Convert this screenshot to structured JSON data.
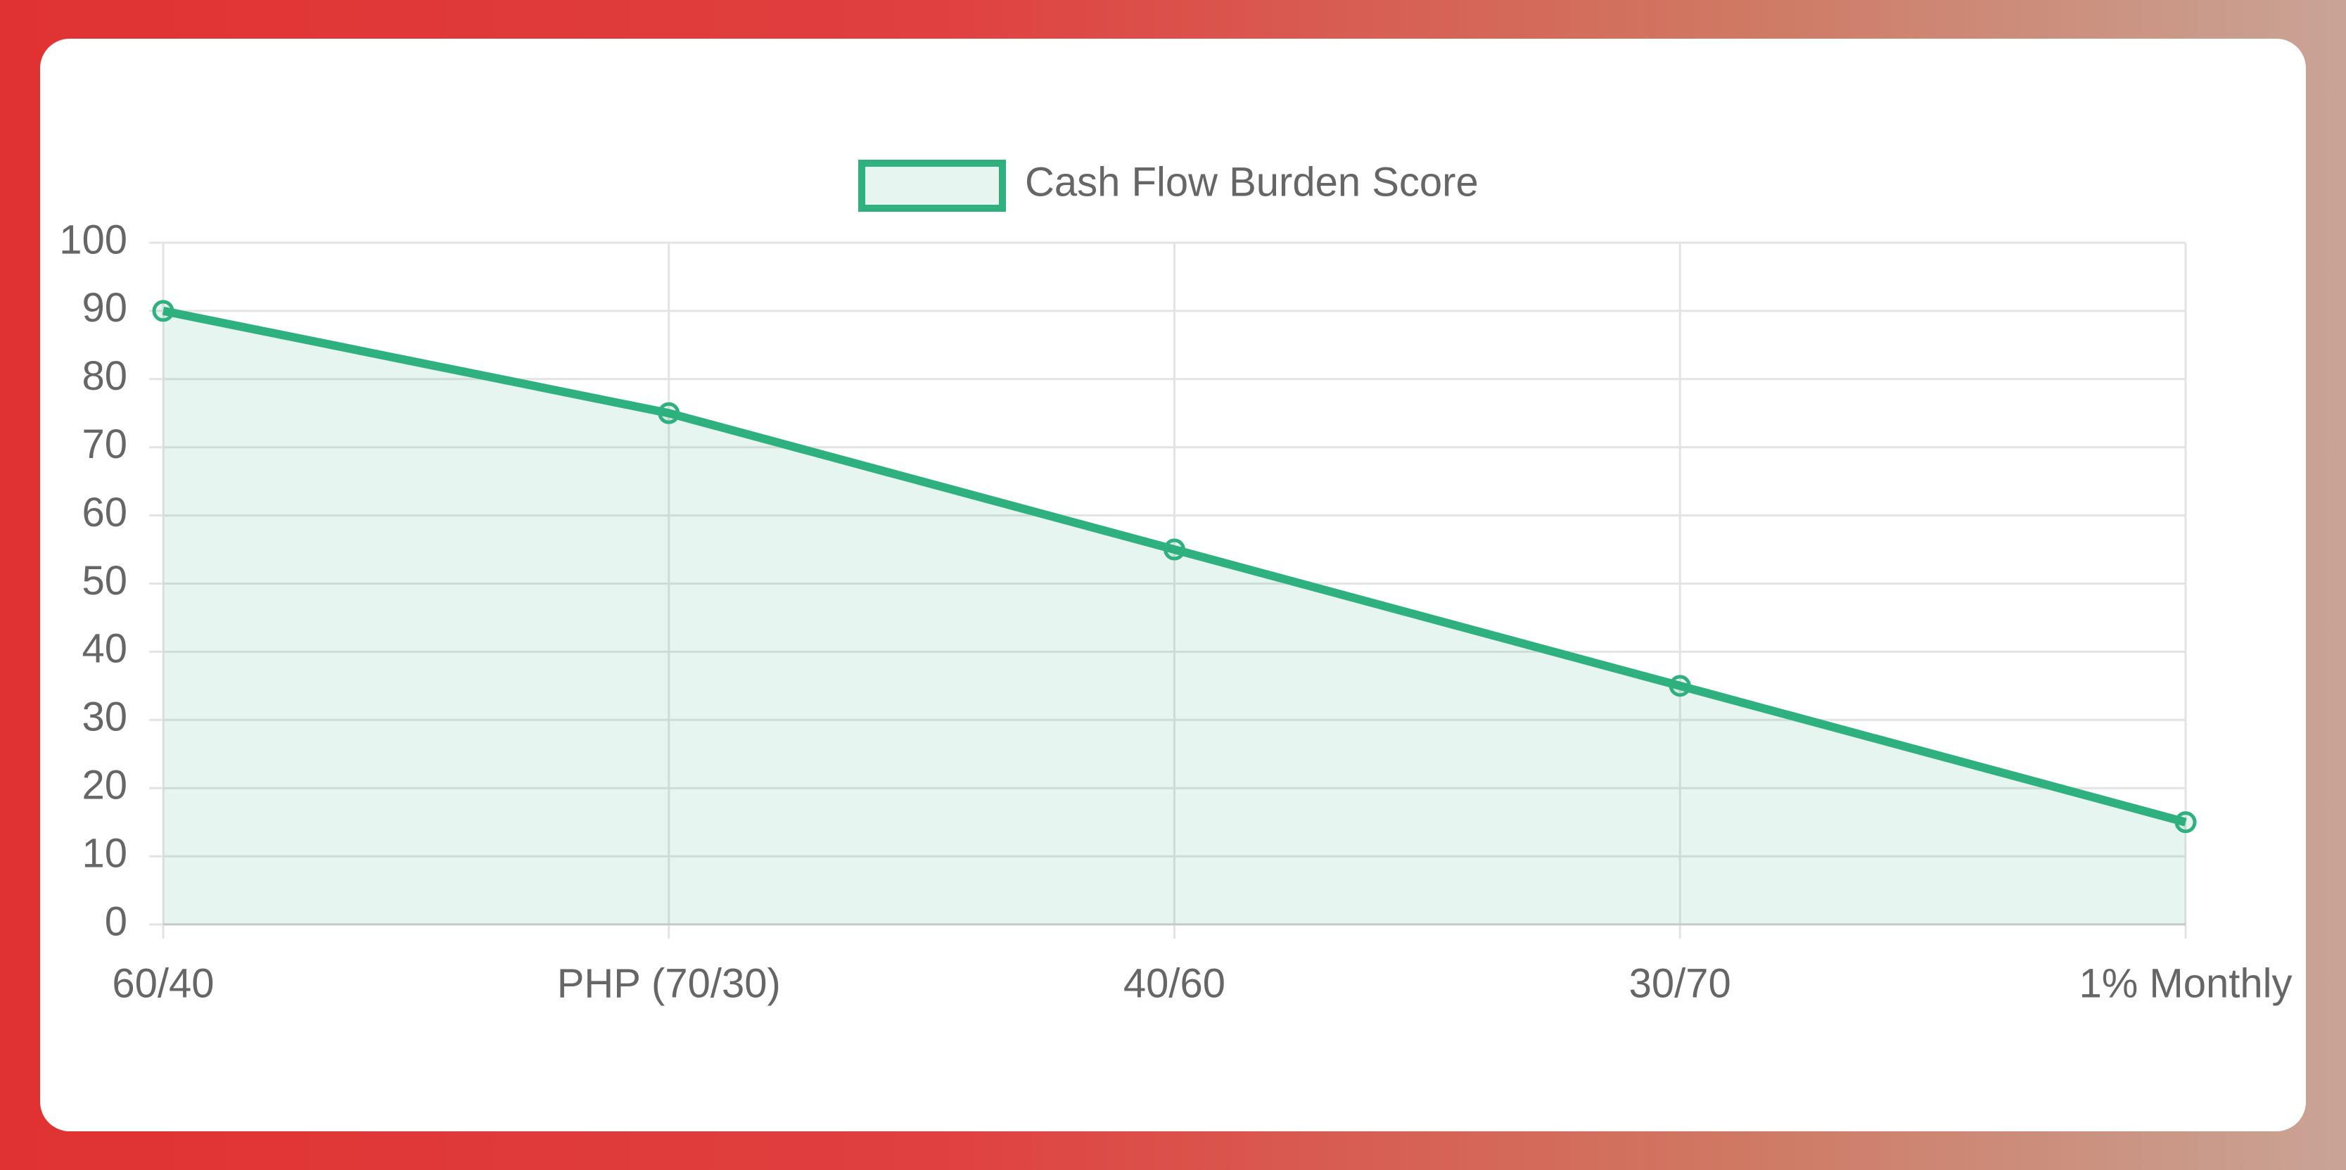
{
  "chart_data": {
    "type": "line",
    "categories": [
      "60/40",
      "PHP (70/30)",
      "40/60",
      "30/70",
      "1% Monthly"
    ],
    "series": [
      {
        "name": "Cash Flow Burden Score",
        "color": "#2eb07f",
        "values": [
          90,
          75,
          55,
          35,
          15
        ]
      }
    ],
    "ylim": [
      0,
      100
    ],
    "yticks": [
      0,
      10,
      20,
      30,
      40,
      50,
      60,
      70,
      80,
      90,
      100
    ],
    "grid": true,
    "legend": "top",
    "fill": true
  }
}
